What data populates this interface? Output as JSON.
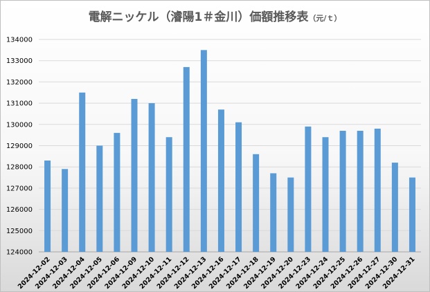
{
  "chart_data": {
    "type": "bar",
    "title": "電解ニッケル（濬陽1＃金川）価額推移表",
    "title_unit": "（元/ｔ）",
    "xlabel": "",
    "ylabel": "",
    "ylim": [
      124000,
      134000
    ],
    "y_ticks": [
      "124000",
      "125000",
      "126000",
      "127000",
      "128000",
      "129000",
      "130000",
      "131000",
      "132000",
      "133000",
      "134000"
    ],
    "grid": true,
    "legend": "none",
    "bar_color": "#5b9bd5",
    "categories": [
      "2024-12-02",
      "2024-12-03",
      "2024-12-04",
      "2024-12-05",
      "2024-12-06",
      "2024-12-09",
      "2024-12-10",
      "2024-12-11",
      "2024-12-12",
      "2024-12-13",
      "2024-12-16",
      "2024-12-17",
      "2024-12-18",
      "2024-12-19",
      "2024-12-20",
      "2024-12-23",
      "2024-12-24",
      "2024-12-25",
      "2024-12-26",
      "2024-12-27",
      "2024-12-30",
      "2024-12-31"
    ],
    "values": [
      128300,
      127900,
      131500,
      129000,
      129600,
      131200,
      131000,
      129400,
      132700,
      133500,
      130700,
      130100,
      128600,
      127700,
      127500,
      129900,
      129400,
      129700,
      129700,
      129800,
      128200,
      127500
    ]
  }
}
